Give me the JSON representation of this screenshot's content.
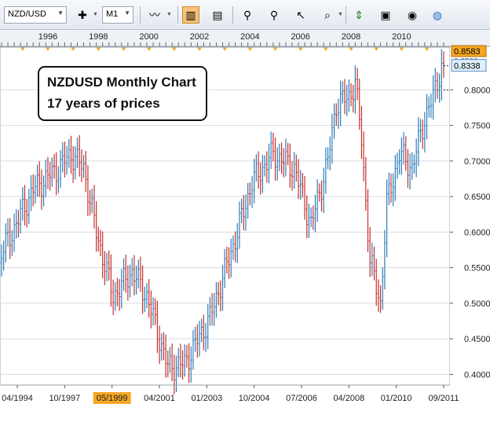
{
  "toolbar": {
    "symbol": "NZD/USD",
    "timeframe": "M1",
    "icons": [
      "crosshair-icon",
      "indicator-icon",
      "bar-chart-icon",
      "candle-chart-icon",
      "analyze-icon",
      "search-icon",
      "cursor-icon",
      "zoom-icon",
      "arrow-icon",
      "print-icon",
      "eye-icon",
      "globe-icon"
    ]
  },
  "annotation": {
    "line1": "NZDUSD Monthly Chart",
    "line2": "17 years of prices"
  },
  "top_years": [
    "1996",
    "1998",
    "2000",
    "2002",
    "2004",
    "2006",
    "2008",
    "2010"
  ],
  "price_badges": {
    "high": "0.8583",
    "current": "0.8338",
    "partial": "0.8500"
  },
  "colors": {
    "up": "#2e7db8",
    "down": "#c8302e",
    "grid": "#d7dce3",
    "highlight": "#f5a623",
    "current": "#dff0ff"
  },
  "chart_data": {
    "type": "ohlc",
    "title": "NZDUSD Monthly Chart",
    "subtitle": "17 years of prices",
    "x_labels": [
      "04/1994",
      "10/1997",
      "05/1999",
      "04/2001",
      "01/2003",
      "10/2004",
      "07/2006",
      "04/2008",
      "01/2010",
      "09/2011"
    ],
    "highlighted_x_label": "05/1999",
    "y_ticks": [
      "0.4000",
      "0.4500",
      "0.5000",
      "0.5500",
      "0.6000",
      "0.6500",
      "0.7000",
      "0.7500",
      "0.8000"
    ],
    "ylim": [
      0.385,
      0.86
    ],
    "x_range": [
      "1994-03",
      "2011-09"
    ],
    "grid": true,
    "anchor_points": [
      {
        "date": "1994-03",
        "price": 0.57
      },
      {
        "date": "1995-06",
        "price": 0.66
      },
      {
        "date": "1996-06",
        "price": 0.69
      },
      {
        "date": "1996-12",
        "price": 0.71
      },
      {
        "date": "1997-06",
        "price": 0.69
      },
      {
        "date": "1997-12",
        "price": 0.6
      },
      {
        "date": "1998-08",
        "price": 0.51
      },
      {
        "date": "1999-05",
        "price": 0.545
      },
      {
        "date": "1999-12",
        "price": 0.51
      },
      {
        "date": "2000-10",
        "price": 0.41
      },
      {
        "date": "2001-06",
        "price": 0.415
      },
      {
        "date": "2002-06",
        "price": 0.48
      },
      {
        "date": "2003-06",
        "price": 0.59
      },
      {
        "date": "2004-02",
        "price": 0.67
      },
      {
        "date": "2004-12",
        "price": 0.71
      },
      {
        "date": "2005-10",
        "price": 0.69
      },
      {
        "date": "2006-06",
        "price": 0.61
      },
      {
        "date": "2007-02",
        "price": 0.7
      },
      {
        "date": "2007-06",
        "price": 0.78
      },
      {
        "date": "2007-12",
        "price": 0.79
      },
      {
        "date": "2008-03",
        "price": 0.81
      },
      {
        "date": "2008-06",
        "price": 0.73
      },
      {
        "date": "2008-10",
        "price": 0.56
      },
      {
        "date": "2009-03",
        "price": 0.5
      },
      {
        "date": "2009-06",
        "price": 0.64
      },
      {
        "date": "2009-12",
        "price": 0.71
      },
      {
        "date": "2010-06",
        "price": 0.69
      },
      {
        "date": "2010-12",
        "price": 0.76
      },
      {
        "date": "2011-04",
        "price": 0.79
      },
      {
        "date": "2011-08",
        "price": 0.833
      }
    ],
    "last_price": 0.8338,
    "period_high": 0.8583
  }
}
